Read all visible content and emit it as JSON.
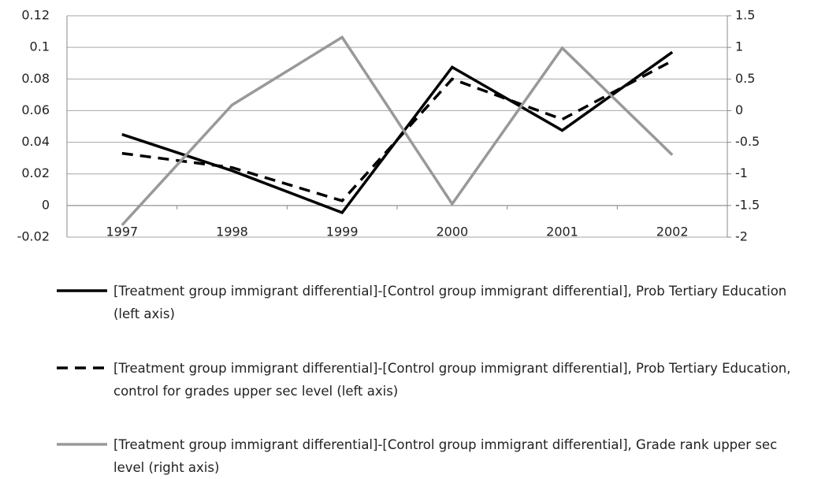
{
  "chart_data": {
    "type": "line",
    "categories": [
      "1997",
      "1998",
      "1999",
      "2000",
      "2001",
      "2002"
    ],
    "ylim": [
      -0.02,
      0.12
    ],
    "yticks": [
      -0.02,
      0,
      0.02,
      0.04,
      0.06,
      0.08,
      0.1,
      0.12
    ],
    "y2lim": [
      -2,
      1.5
    ],
    "y2ticks": [
      -2,
      -1.5,
      -1,
      -0.5,
      0,
      0.5,
      1,
      1.5
    ],
    "grid": true,
    "series": [
      {
        "name": "[Treatment group immigrant differential]-[Control group immigrant differential], Prob Tertiary Education (left axis)",
        "color": "#000000",
        "line_style": "solid",
        "values": [
          0.045,
          0.022,
          -0.0045,
          0.0875,
          0.0475,
          0.097
        ]
      },
      {
        "name": "[Treatment group immigrant differential]-[Control group immigrant differential], Prob Tertiary Education, control for grades upper sec level (left axis)",
        "color": "#000000",
        "line_style": "dashed",
        "values": [
          0.033,
          0.024,
          0.003,
          0.08,
          0.0545,
          0.0915
        ]
      },
      {
        "name": "[Treatment group immigrant differential]-[Control group immigrant differential], Grade rank upper sec level (right axis)",
        "color": "#999999",
        "line_style": "solid",
        "axis": "y2",
        "values": [
          -1.81,
          0.09,
          1.16,
          -1.475,
          0.99,
          -0.7
        ]
      }
    ]
  }
}
